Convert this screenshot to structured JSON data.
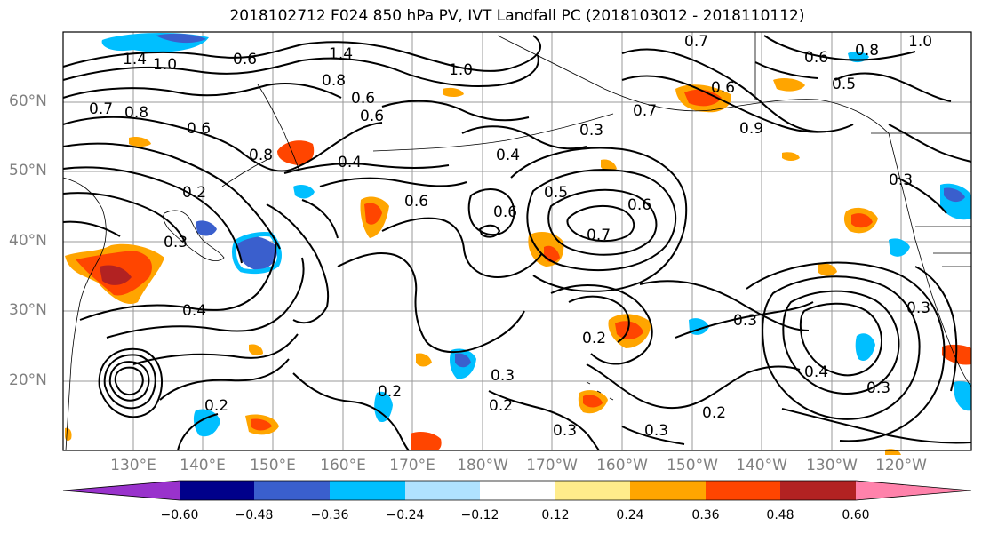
{
  "title": "2018102712 F024 850 hPa PV, IVT Landfall PC (2018103012 - 2018110112)",
  "map": {
    "projection": "equirectangular",
    "extent": {
      "lon_min": 120,
      "lon_max": 250,
      "lat_min": 10,
      "lat_max": 70
    },
    "lat_labels": [
      "60°N",
      "50°N",
      "40°N",
      "30°N",
      "20°N"
    ],
    "lon_labels": [
      "130°E",
      "140°E",
      "150°E",
      "160°E",
      "170°E",
      "180°W",
      "170°W",
      "160°W",
      "150°W",
      "140°W",
      "130°W",
      "120°W"
    ],
    "contour_labels": [
      "1.0",
      "1.4",
      "0.6",
      "1.4",
      "0.7",
      "1.0",
      "0.8",
      "0.6",
      "0.7",
      "0.6",
      "0.8",
      "0.6",
      "0.8",
      "0.4",
      "0.2",
      "0.3",
      "0.4",
      "0.6",
      "0.5",
      "0.6",
      "0.4",
      "0.3",
      "0.7",
      "0.9",
      "0.6",
      "0.5",
      "0.8",
      "1.0",
      "0.6",
      "0.7",
      "0.6",
      "0.2",
      "0.3",
      "0.2",
      "0.3",
      "0.4",
      "0.3",
      "0.2",
      "0.3",
      "0.2",
      "0.3",
      "0.2",
      "0.3",
      "0.3"
    ]
  },
  "colorbar": {
    "ticks": [
      "−0.60",
      "−0.48",
      "−0.36",
      "−0.24",
      "−0.12",
      "0.12",
      "0.24",
      "0.36",
      "0.48",
      "0.60"
    ],
    "colors": [
      "#9932cc",
      "#00008b",
      "#3a5fcd",
      "#00bfff",
      "#b0e2ff",
      "#ffffff",
      "#ffec8b",
      "#ffa500",
      "#ff4500",
      "#b22222",
      "#ff82ab"
    ]
  }
}
